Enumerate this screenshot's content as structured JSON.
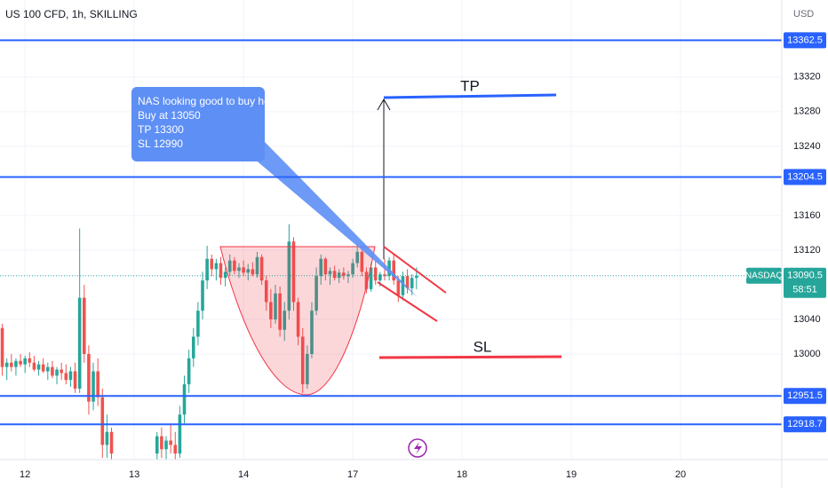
{
  "chart_data": {
    "type": "candlestick",
    "title": "US 100 CFD, 1h, SKILLING",
    "currency": "USD",
    "symbol_label": "NASDAQ",
    "last_price": 13090.5,
    "countdown": "58:51",
    "up_color": "#26a69a",
    "down_color": "#ef5350",
    "line_color": "#2962ff",
    "xlim": [
      -5.5,
      166.25
    ],
    "ylim": [
      12878,
      13409
    ],
    "xticks": [
      {
        "value": 0,
        "label": "12"
      },
      {
        "value": 24,
        "label": "13"
      },
      {
        "value": 48,
        "label": "14"
      },
      {
        "value": 72,
        "label": "17"
      },
      {
        "value": 96,
        "label": "18"
      },
      {
        "value": 120,
        "label": "19"
      },
      {
        "value": 144,
        "label": "20"
      }
    ],
    "yticks": [
      13320,
      13280,
      13240,
      13160,
      13120,
      13040,
      13000
    ],
    "price_lines": [
      13362.5,
      13204.5,
      12951.5,
      12918.7
    ],
    "callout": [
      "NAS looking good to buy here",
      "Buy at 13050",
      "TP 13300",
      "SL 12990"
    ],
    "tp_label": "TP",
    "sl_label": "SL",
    "x": [
      -5,
      -4,
      -3,
      -2,
      -1,
      0,
      1,
      2,
      3,
      4,
      5,
      6,
      7,
      8,
      9,
      10,
      11,
      12,
      13,
      14,
      15,
      16,
      17,
      18,
      19,
      29,
      30,
      31,
      32,
      33,
      34,
      35,
      36,
      37,
      38,
      39,
      40,
      41,
      42,
      43,
      44,
      45,
      46,
      47,
      48,
      49,
      50,
      51,
      52,
      53,
      54,
      55,
      56,
      57,
      58,
      59,
      60,
      61,
      62,
      63,
      64,
      65,
      66,
      67,
      68,
      69,
      70,
      71,
      72,
      73,
      74,
      75,
      76,
      77,
      78,
      79,
      80,
      81,
      82,
      83,
      84,
      85,
      86
    ],
    "open": [
      13030,
      12985,
      12990,
      12985,
      12992,
      12988,
      12995,
      12990,
      12982,
      12988,
      12980,
      12985,
      12975,
      12982,
      12978,
      12970,
      12980,
      12960,
      13065,
      13000,
      12945,
      12980,
      12950,
      12895,
      12910,
      12885,
      12905,
      12890,
      12900,
      12895,
      12885,
      12930,
      12965,
      12995,
      13020,
      13050,
      13085,
      13110,
      13098,
      13105,
      13088,
      13095,
      13108,
      13096,
      13100,
      13094,
      13098,
      13092,
      13112,
      13085,
      13060,
      13040,
      13070,
      13028,
      13050,
      13130,
      13060,
      13020,
      12965,
      13000,
      13050,
      13090,
      13110,
      13092,
      13096,
      13088,
      13094,
      13090,
      13092,
      13105,
      13118,
      13095,
      13075,
      13100,
      13085,
      13092,
      13090,
      13108,
      13085,
      13068,
      13090,
      13076,
      13088
    ],
    "high": [
      13035,
      12995,
      13000,
      12995,
      13000,
      12998,
      13002,
      12998,
      12992,
      12995,
      12990,
      12992,
      12985,
      12990,
      12988,
      12985,
      12990,
      13145,
      13080,
      13010,
      12990,
      12995,
      12960,
      12930,
      12915,
      12910,
      12915,
      12905,
      12920,
      12910,
      12940,
      12975,
      13005,
      13030,
      13060,
      13095,
      13125,
      13115,
      13110,
      13112,
      13100,
      13115,
      13112,
      13105,
      13108,
      13104,
      13106,
      13118,
      13115,
      13090,
      13075,
      13080,
      13078,
      13060,
      13150,
      13135,
      13065,
      13030,
      13010,
      13060,
      13100,
      13115,
      13112,
      13100,
      13102,
      13098,
      13100,
      13096,
      13110,
      13125,
      13120,
      13100,
      13105,
      13108,
      13095,
      13110,
      13112,
      13115,
      13090,
      13095,
      13098,
      13092,
      13100
    ],
    "low": [
      12975,
      12970,
      12980,
      12975,
      12985,
      12978,
      12985,
      12980,
      12975,
      12978,
      12970,
      12972,
      12965,
      12970,
      12965,
      12962,
      12955,
      12955,
      12990,
      12930,
      12935,
      12940,
      12880,
      12880,
      12878,
      12878,
      12880,
      12878,
      12885,
      12878,
      12880,
      12920,
      12955,
      12985,
      13010,
      13040,
      13075,
      13090,
      13085,
      13080,
      13078,
      13090,
      13092,
      13088,
      13090,
      13085,
      13090,
      13088,
      13080,
      13050,
      13030,
      13035,
      13020,
      13015,
      13040,
      13050,
      13010,
      12955,
      12960,
      12995,
      13045,
      13080,
      13085,
      13080,
      13085,
      13082,
      13086,
      13082,
      13088,
      13100,
      13090,
      13070,
      13072,
      13080,
      13078,
      13085,
      13085,
      13080,
      13060,
      13062,
      13070,
      13068,
      13075
    ],
    "close": [
      12985,
      12990,
      12985,
      12992,
      12988,
      12995,
      12990,
      12982,
      12988,
      12980,
      12985,
      12975,
      12982,
      12978,
      12970,
      12980,
      12960,
      13065,
      13000,
      12945,
      12980,
      12950,
      12895,
      12910,
      12885,
      12905,
      12890,
      12900,
      12895,
      12885,
      12930,
      12965,
      12995,
      13020,
      13050,
      13085,
      13110,
      13098,
      13105,
      13088,
      13095,
      13108,
      13096,
      13100,
      13094,
      13098,
      13092,
      13112,
      13085,
      13060,
      13040,
      13070,
      13028,
      13050,
      13130,
      13060,
      13020,
      12965,
      13000,
      13050,
      13090,
      13110,
      13092,
      13096,
      13088,
      13094,
      13090,
      13092,
      13105,
      13118,
      13095,
      13075,
      13100,
      13085,
      13092,
      13090,
      13108,
      13085,
      13068,
      13090,
      13076,
      13088,
      13090.5
    ]
  }
}
